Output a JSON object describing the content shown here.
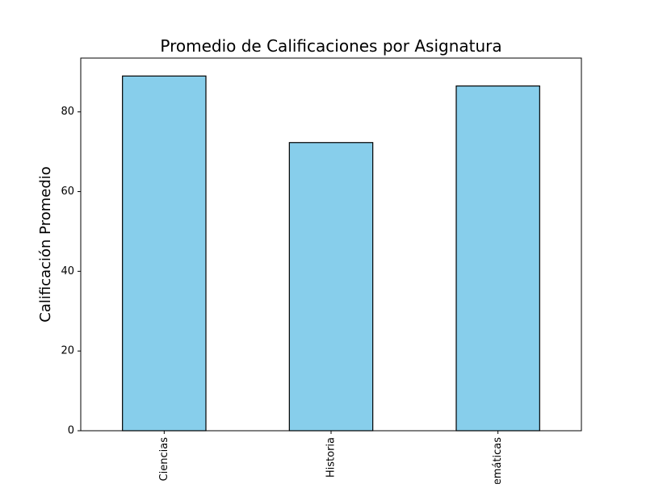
{
  "chart_data": {
    "type": "bar",
    "title": "Promedio de Calificaciones por Asignatura",
    "xlabel": "",
    "ylabel": "Calificación Promedio",
    "categories": [
      "Ciencias",
      "Historia",
      "Matemáticas"
    ],
    "values": [
      89,
      72.3,
      86.5
    ],
    "ylim": [
      0,
      93.5
    ],
    "yticks": [
      0,
      20,
      40,
      60,
      80
    ],
    "bar_color": "#87ceeb",
    "edge_color": "#000000",
    "grid": false,
    "legend": "none"
  }
}
